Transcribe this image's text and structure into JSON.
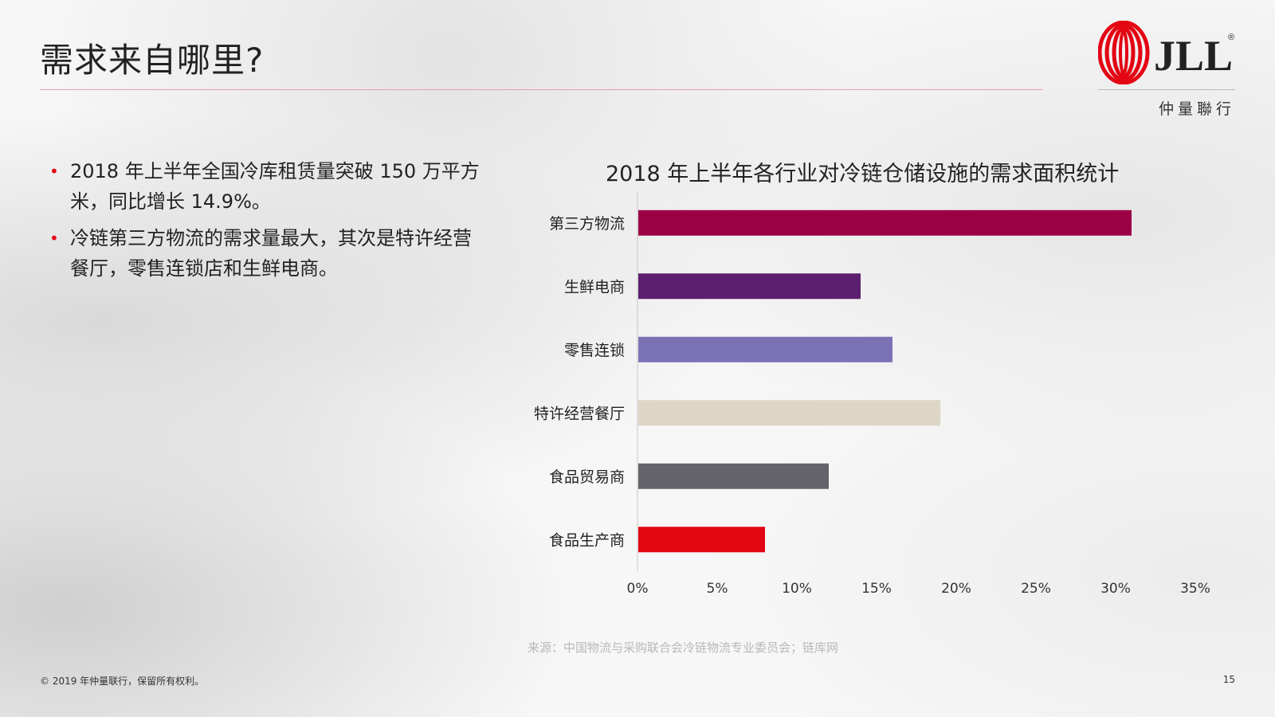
{
  "title": "需求来自哪里?",
  "logo": {
    "mark": "JLL",
    "registered": "®",
    "subtitle": "仲量聯行"
  },
  "bullets": [
    "2018 年上半年全国冷库租赁量突破 150 万平方米，同比增长 14.9%。",
    "冷链第三方物流的需求量最大，其次是特许经营餐厅，零售连锁店和生鲜电商。"
  ],
  "colors": {
    "accent": "#e30613",
    "title_rule": "#e8a0a8",
    "bars": [
      "#9b0045",
      "#5c1e6e",
      "#7b72b6",
      "#ddd5c6",
      "#636369",
      "#e30613"
    ]
  },
  "chart_data": {
    "type": "bar",
    "orientation": "horizontal",
    "title": "2018 年上半年各行业对冷链仓储设施的需求面积统计",
    "categories": [
      "第三方物流",
      "生鲜电商",
      "零售连锁",
      "特许经营餐厅",
      "食品贸易商",
      "食品生产商"
    ],
    "values": [
      31,
      14,
      16,
      19,
      12,
      8
    ],
    "value_unit": "%",
    "xlim": [
      0,
      35
    ],
    "xticks": [
      "0%",
      "5%",
      "10%",
      "15%",
      "20%",
      "25%",
      "30%",
      "35%"
    ],
    "grid": false,
    "legend": "none"
  },
  "source": "来源：中国物流与采购联合会冷链物流专业委员会；链库网",
  "footer": {
    "copyright": "© 2019 年仲量联行，保留所有权利。",
    "page_number": "15"
  }
}
